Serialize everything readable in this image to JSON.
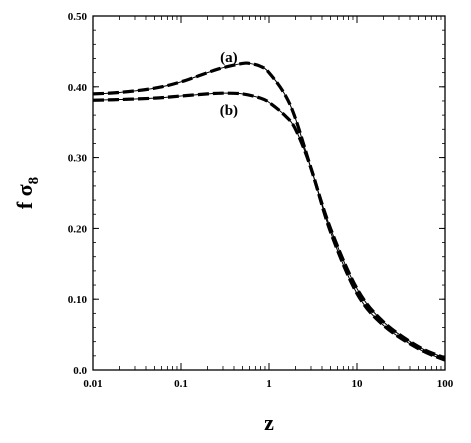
{
  "chart_data": {
    "type": "line",
    "xscale": "log",
    "xlim": [
      0.01,
      100
    ],
    "ylim": [
      0.0,
      0.5
    ],
    "xlabel": "z",
    "ylabel_main": "f σ",
    "ylabel_sub": "8",
    "x_ticks": [
      0.01,
      0.1,
      1,
      10,
      100
    ],
    "x_tick_labels": [
      "0.01",
      "0.1",
      "1",
      "10",
      "100"
    ],
    "y_ticks": [
      0.0,
      0.1,
      0.2,
      0.3,
      0.4,
      0.5
    ],
    "y_tick_labels": [
      "0.0",
      "0.10",
      "0.20",
      "0.30",
      "0.40",
      "0.50"
    ],
    "grid": false,
    "series": [
      {
        "name": "(a)",
        "x": [
          0.01,
          0.02,
          0.05,
          0.1,
          0.2,
          0.3,
          0.5,
          0.6,
          0.8,
          1,
          1.5,
          2,
          3,
          5,
          10,
          20,
          50,
          100
        ],
        "y": [
          0.39,
          0.392,
          0.398,
          0.407,
          0.42,
          0.427,
          0.433,
          0.433,
          0.429,
          0.42,
          0.39,
          0.355,
          0.285,
          0.2,
          0.115,
          0.068,
          0.033,
          0.017
        ]
      },
      {
        "name": "(b)",
        "x": [
          0.01,
          0.02,
          0.05,
          0.1,
          0.2,
          0.3,
          0.5,
          0.8,
          1,
          1.5,
          2,
          3,
          5,
          10,
          20,
          50,
          100
        ],
        "y": [
          0.381,
          0.382,
          0.384,
          0.387,
          0.39,
          0.391,
          0.39,
          0.384,
          0.378,
          0.36,
          0.34,
          0.285,
          0.195,
          0.108,
          0.063,
          0.03,
          0.014
        ]
      }
    ],
    "annotations": [
      {
        "text": "(a)",
        "x": 0.35,
        "y": 0.442
      },
      {
        "text": "(b)",
        "x": 0.35,
        "y": 0.367
      }
    ]
  }
}
